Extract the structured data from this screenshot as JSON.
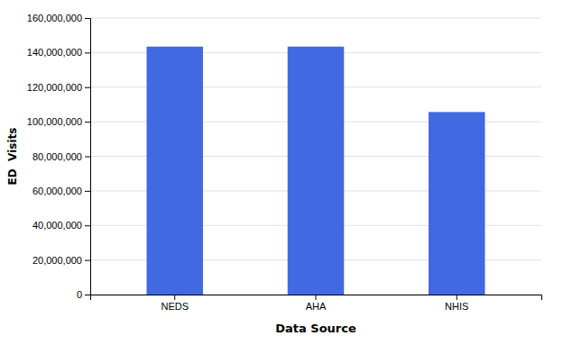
{
  "chart_data": {
    "type": "bar",
    "categories": [
      "NEDS",
      "AHA",
      "NHIS"
    ],
    "values": [
      143454430,
      143454430,
      105616498
    ],
    "color": "#4169E1",
    "xlabel": "Data Source",
    "ylabel": "ED  Visits",
    "ylim": [
      0,
      160000000
    ],
    "yticks": [
      0,
      {
        "value": 20000000,
        "label": "20,000,000"
      },
      {
        "value": 40000000,
        "label": "40,000,000"
      },
      {
        "value": 60000000,
        "label": "60,000,000"
      },
      {
        "value": 80000000,
        "label": "80,000,000"
      },
      {
        "value": 100000000,
        "label": "100,000,000"
      },
      {
        "value": 120000000,
        "label": "120,000,000"
      },
      {
        "value": 140000000,
        "label": "140,000,000"
      },
      {
        "value": 160000000,
        "label": "160,000,000"
      }
    ],
    "grid": true
  }
}
